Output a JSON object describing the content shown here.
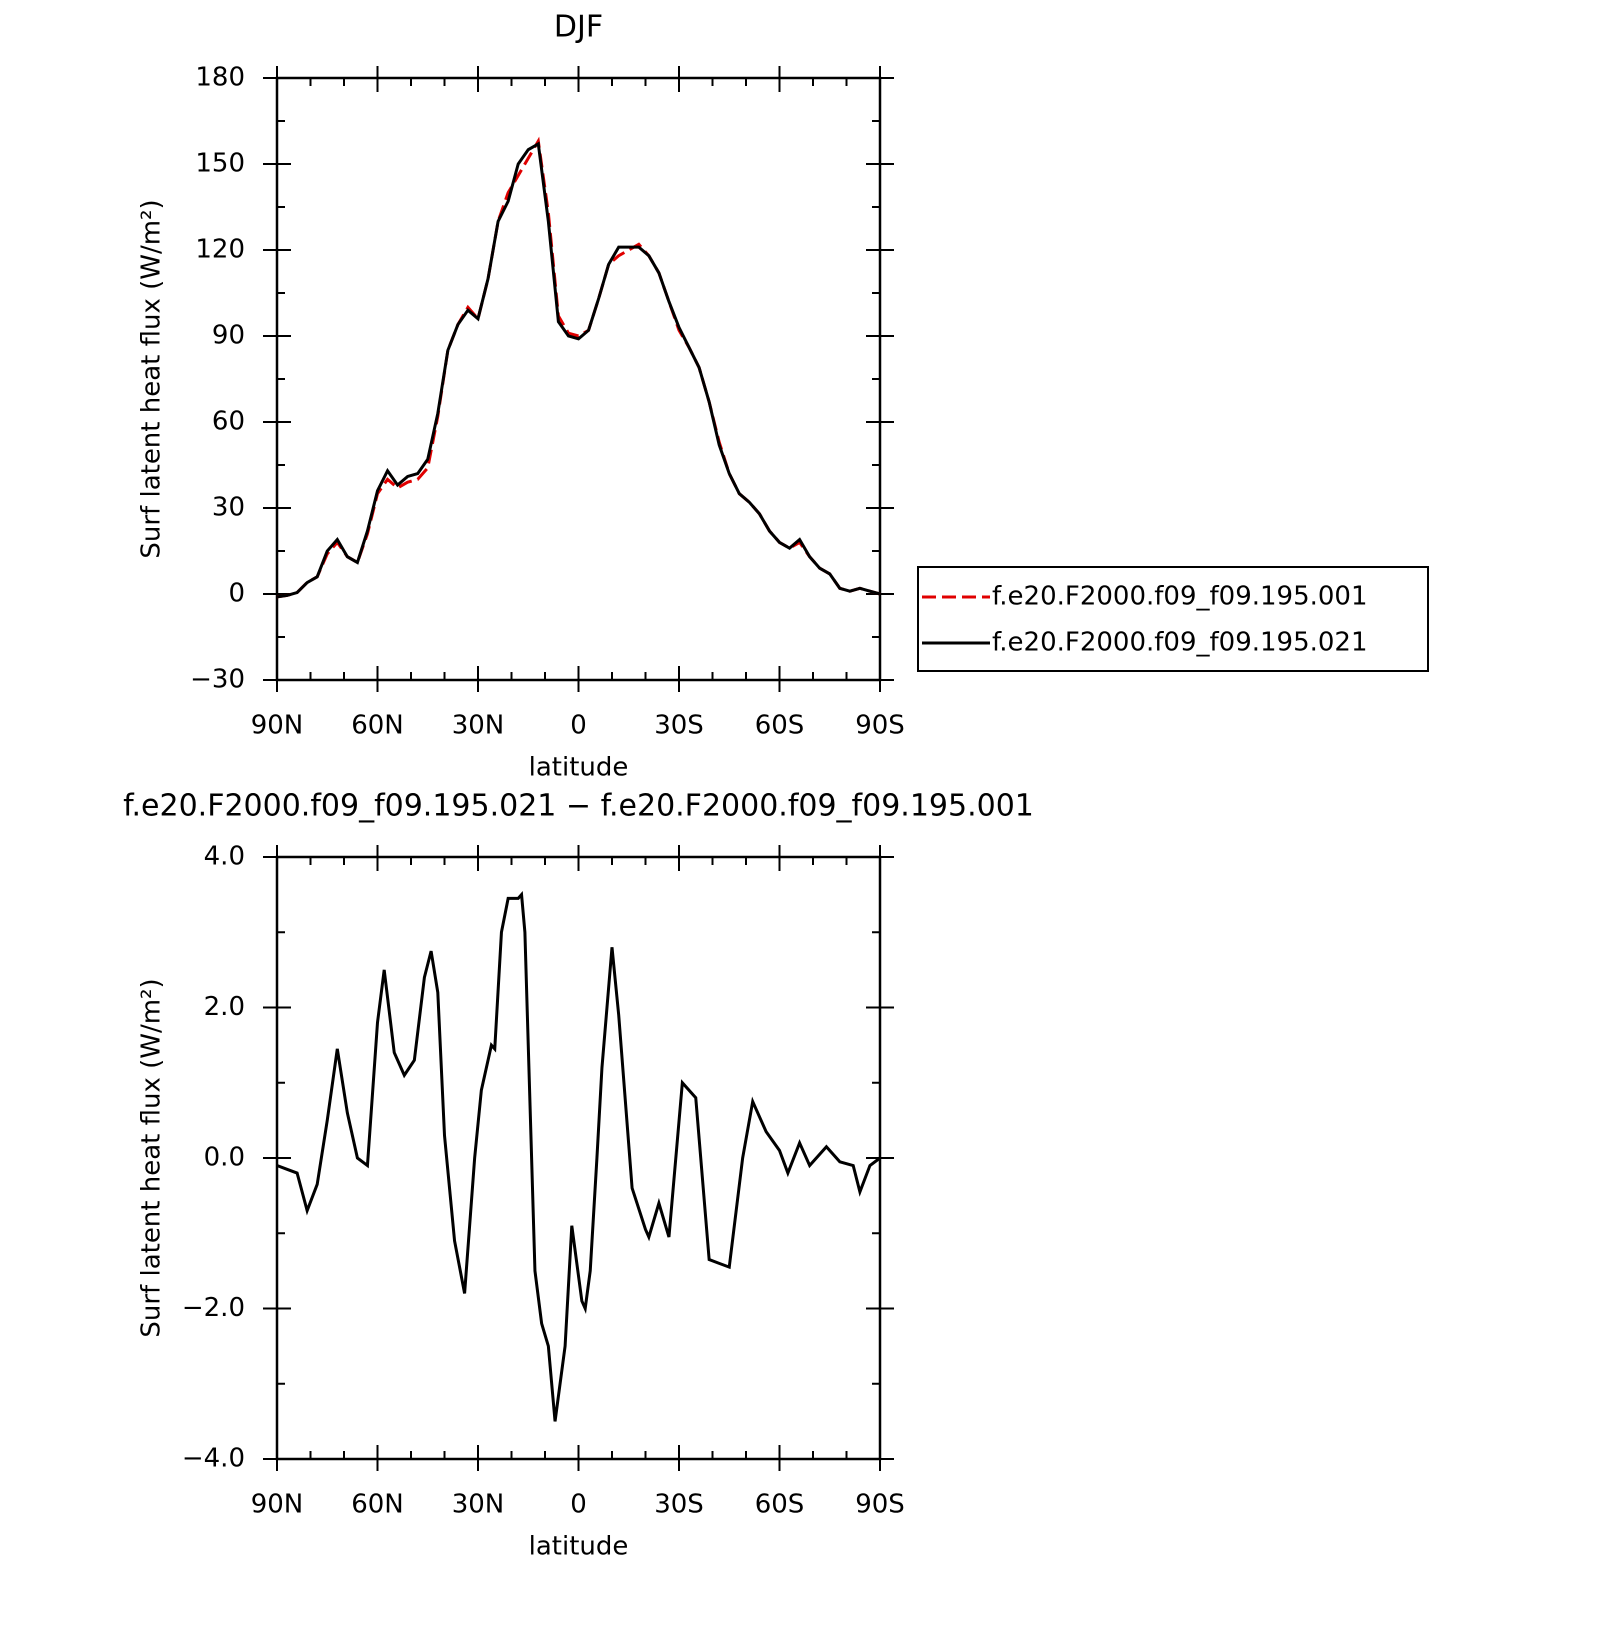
{
  "chart_data": [
    {
      "type": "line",
      "title": "DJF",
      "xlabel": "latitude",
      "ylabel": "Surf latent heat flux (W/m²)",
      "xlim": [
        90,
        -90
      ],
      "xticks": [
        {
          "value": 90,
          "label": "90N"
        },
        {
          "value": 60,
          "label": "60N"
        },
        {
          "value": 30,
          "label": "30N"
        },
        0,
        {
          "value": -30,
          "label": "30S"
        },
        {
          "value": -60,
          "label": "60S"
        },
        {
          "value": -90,
          "label": "90S"
        }
      ],
      "ylim": [
        -30,
        180
      ],
      "yticks": [
        {
          "value": -30,
          "label": "−30"
        },
        0,
        30,
        60,
        90,
        120,
        150,
        180
      ],
      "legend": "right",
      "x": [
        90,
        87,
        84,
        81,
        78,
        75,
        72,
        69,
        66,
        63,
        60,
        57,
        54,
        51,
        48,
        45,
        42,
        39,
        36,
        33,
        30,
        27,
        24,
        21,
        18,
        15,
        12,
        9,
        6,
        3,
        0,
        -3,
        -6,
        -9,
        -12,
        -15,
        -18,
        -21,
        -24,
        -27,
        -30,
        -33,
        -36,
        -39,
        -42,
        -45,
        -48,
        -51,
        -54,
        -57,
        -60,
        -63,
        -66,
        -69,
        -72,
        -75,
        -78,
        -81,
        -84,
        -87,
        -90
      ],
      "series": [
        {
          "name": "f.e20.F2000.f09_f09.195.001",
          "color": "#e00000",
          "line_style": "dashed",
          "values": [
            -1,
            -0.5,
            0.5,
            4,
            6,
            14,
            18,
            13,
            11,
            21,
            35,
            40,
            37,
            39,
            40,
            44,
            62,
            85,
            94,
            100,
            96,
            110,
            130,
            140,
            146,
            152,
            158,
            133,
            97,
            91,
            90,
            92,
            103,
            115,
            118,
            120,
            122,
            118,
            112,
            102,
            92,
            86,
            79,
            67,
            53,
            42,
            35,
            32,
            28,
            22,
            18,
            16,
            18,
            13,
            9,
            7,
            2,
            1,
            2,
            1,
            0
          ]
        },
        {
          "name": "f.e20.F2000.f09_f09.195.021",
          "color": "#000000",
          "line_style": "solid",
          "values": [
            -1,
            -0.5,
            0.5,
            4,
            6,
            15,
            19,
            13,
            11,
            22,
            36,
            43,
            38,
            41,
            42,
            47,
            63,
            85,
            94,
            99,
            96,
            110,
            130,
            137,
            150,
            155,
            157,
            130,
            95,
            90,
            89,
            92,
            103,
            115,
            121,
            121,
            121,
            118,
            112,
            102,
            93,
            86,
            79,
            67,
            52,
            42,
            35,
            32,
            28,
            22,
            18,
            16,
            19,
            13,
            9,
            7,
            2,
            1,
            2,
            1,
            0
          ]
        }
      ]
    },
    {
      "type": "line",
      "title": "f.e20.F2000.f09_f09.195.021 − f.e20.F2000.f09_f09.195.001",
      "xlabel": "latitude",
      "ylabel": "Surf latent heat flux (W/m²)",
      "xlim": [
        90,
        -90
      ],
      "xticks": [
        {
          "value": 90,
          "label": "90N"
        },
        {
          "value": 60,
          "label": "60N"
        },
        {
          "value": 30,
          "label": "30N"
        },
        0,
        {
          "value": -30,
          "label": "30S"
        },
        {
          "value": -60,
          "label": "60S"
        },
        {
          "value": -90,
          "label": "90S"
        }
      ],
      "ylim": [
        -4,
        4
      ],
      "yticks": [
        {
          "value": -4,
          "label": "−4.0"
        },
        {
          "value": -2,
          "label": "−2.0"
        },
        {
          "value": 0,
          "label": "0.0"
        },
        {
          "value": 2,
          "label": "2.0"
        },
        {
          "value": 4,
          "label": "4.0"
        }
      ],
      "x": [
        90,
        87,
        84,
        81,
        78,
        75,
        72,
        69,
        66,
        63,
        60,
        58,
        55,
        52,
        49,
        46,
        44,
        42,
        40,
        37,
        34,
        31,
        29,
        26,
        25,
        23,
        21,
        18,
        17,
        16,
        13,
        11,
        9,
        7,
        4,
        2,
        -1,
        -2,
        -3.5,
        -5.5,
        -7,
        -10,
        -12,
        -16,
        -20,
        -21,
        -24,
        -27,
        -31,
        -35,
        -39,
        -42,
        -45,
        -49,
        -52,
        -56,
        -60,
        -62.5,
        -66,
        -69,
        -74,
        -78,
        -82,
        -84,
        -87,
        -90
      ],
      "series": [
        {
          "color": "#000000",
          "line_style": "solid",
          "values": [
            -0.1,
            -0.15,
            -0.2,
            -0.7,
            -0.35,
            0.5,
            1.45,
            0.6,
            0.0,
            -0.1,
            1.8,
            2.5,
            1.4,
            1.1,
            1.3,
            2.4,
            2.75,
            2.2,
            0.3,
            -1.1,
            -1.8,
            0.0,
            0.9,
            1.5,
            1.45,
            3.0,
            3.45,
            3.45,
            3.5,
            3.0,
            -1.5,
            -2.2,
            -2.5,
            -3.5,
            -2.5,
            -0.9,
            -1.9,
            -2.0,
            -1.5,
            0.0,
            1.2,
            2.8,
            1.9,
            -0.4,
            -0.95,
            -1.05,
            -0.6,
            -1.05,
            1.0,
            0.8,
            -1.35,
            -1.4,
            -1.45,
            0.0,
            0.75,
            0.35,
            0.1,
            -0.2,
            0.2,
            -0.1,
            0.15,
            -0.05,
            -0.1,
            -0.45,
            -0.1,
            0
          ]
        }
      ]
    }
  ]
}
